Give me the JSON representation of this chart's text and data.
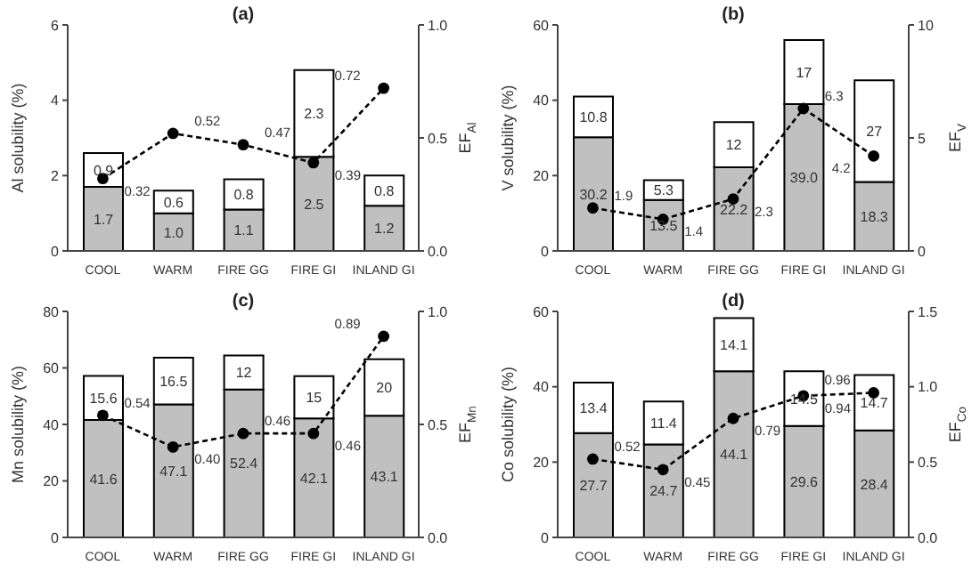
{
  "chart_data": [
    {
      "type": "bar",
      "title": "(a)",
      "ylabel": "Al solubility (%)",
      "y2label": "EF$_{Al}$",
      "categories": [
        "COOL",
        "WARM",
        "FIRE GG",
        "FIRE GI",
        "INLAND GI"
      ],
      "stacked": true,
      "series": [
        {
          "color": "#c0c0c0",
          "values": [
            1.7,
            1.0,
            1.1,
            2.5,
            1.2
          ],
          "value_labels": [
            "1.7",
            "1.0",
            "1.1",
            "2.5",
            "1.2"
          ]
        },
        {
          "color": "#ffffff",
          "values": [
            0.9,
            0.6,
            0.8,
            2.3,
            0.8
          ],
          "value_labels": [
            "0.9",
            "0.6",
            "0.8",
            "2.3",
            "0.8"
          ]
        },
        {
          "type": "line",
          "axis": "y2",
          "color": "#000000",
          "values": [
            0.32,
            0.52,
            0.47,
            0.39,
            0.72
          ],
          "value_labels": [
            "0.32",
            "0.52",
            "0.47",
            "0.39",
            "0.72"
          ]
        }
      ],
      "ylim": [
        0,
        6
      ],
      "yticks": [
        0,
        2,
        4,
        6
      ],
      "y2lim": [
        0,
        1
      ],
      "y2ticks": [
        {
          "value": 0,
          "label": "0.0"
        },
        {
          "value": 0.5,
          "label": "0.5"
        },
        {
          "value": 1,
          "label": "1.0"
        }
      ],
      "grid": false,
      "legend": false,
      "marker": "circle",
      "line_style": "dashed"
    },
    {
      "type": "bar",
      "title": "(b)",
      "ylabel": "V solubility (%)",
      "y2label": "EF$_{V}$",
      "categories": [
        "COOL",
        "WARM",
        "FIRE GG",
        "FIRE GI",
        "INLAND GI"
      ],
      "stacked": true,
      "series": [
        {
          "color": "#c0c0c0",
          "values": [
            30.2,
            13.5,
            22.2,
            39.0,
            18.3
          ],
          "value_labels": [
            "30.2",
            "13.5",
            "22.2",
            "39.0",
            "18.3"
          ]
        },
        {
          "color": "#ffffff",
          "values": [
            10.8,
            5.3,
            12,
            17,
            27
          ],
          "value_labels": [
            "10.8",
            "5.3",
            "12",
            "17",
            "27"
          ]
        },
        {
          "type": "line",
          "axis": "y2",
          "color": "#000000",
          "values": [
            1.9,
            1.4,
            2.3,
            6.3,
            4.2
          ],
          "value_labels": [
            "1.9",
            "1.4",
            "2.3",
            "6.3",
            "4.2"
          ]
        }
      ],
      "ylim": [
        0,
        60
      ],
      "yticks": [
        0,
        20,
        40,
        60
      ],
      "y2lim": [
        0,
        10
      ],
      "y2ticks": [
        0,
        5,
        10
      ],
      "grid": false,
      "legend": false,
      "marker": "circle",
      "line_style": "dashed"
    },
    {
      "type": "bar",
      "title": "(c)",
      "ylabel": "Mn solubility (%)",
      "y2label": "EF$_{Mn}$",
      "categories": [
        "COOL",
        "WARM",
        "FIRE GG",
        "FIRE GI",
        "INLAND GI"
      ],
      "stacked": true,
      "series": [
        {
          "color": "#c0c0c0",
          "values": [
            41.6,
            47.1,
            52.4,
            42.1,
            43.1
          ],
          "value_labels": [
            "41.6",
            "47.1",
            "52.4",
            "42.1",
            "43.1"
          ]
        },
        {
          "color": "#ffffff",
          "values": [
            15.6,
            16.5,
            12,
            15,
            20
          ],
          "value_labels": [
            "15.6",
            "16.5",
            "12",
            "15",
            "20"
          ]
        },
        {
          "type": "line",
          "axis": "y2",
          "color": "#000000",
          "values": [
            0.54,
            0.4,
            0.46,
            0.46,
            0.89
          ],
          "value_labels": [
            "0.54",
            "0.40",
            "0.46",
            "0.46",
            "0.89"
          ]
        }
      ],
      "ylim": [
        0,
        80
      ],
      "yticks": [
        0,
        20,
        40,
        60,
        80
      ],
      "y2lim": [
        0,
        1
      ],
      "y2ticks": [
        {
          "value": 0,
          "label": "0.0"
        },
        {
          "value": 0.5,
          "label": "0.5"
        },
        {
          "value": 1,
          "label": "1.0"
        }
      ],
      "grid": false,
      "legend": false,
      "marker": "circle",
      "line_style": "dashed"
    },
    {
      "type": "bar",
      "title": "(d)",
      "ylabel": "Co solubility (%)",
      "y2label": "EF$_{Co}$",
      "categories": [
        "COOL",
        "WARM",
        "FIRE GG",
        "FIRE GI",
        "INLAND GI"
      ],
      "stacked": true,
      "series": [
        {
          "color": "#c0c0c0",
          "values": [
            27.7,
            24.7,
            44.1,
            29.6,
            28.4
          ],
          "value_labels": [
            "27.7",
            "24.7",
            "44.1",
            "29.6",
            "28.4"
          ]
        },
        {
          "color": "#ffffff",
          "values": [
            13.4,
            11.4,
            14.1,
            14.5,
            14.7
          ],
          "value_labels": [
            "13.4",
            "11.4",
            "14.1",
            "14.5",
            "14.7"
          ]
        },
        {
          "type": "line",
          "axis": "y2",
          "color": "#000000",
          "values": [
            0.52,
            0.45,
            0.79,
            0.94,
            0.96
          ],
          "value_labels": [
            "0.52",
            "0.45",
            "0.79",
            "0.94",
            "0.96"
          ]
        }
      ],
      "ylim": [
        0,
        60
      ],
      "yticks": [
        0,
        20,
        40,
        60
      ],
      "y2lim": [
        0,
        1.5
      ],
      "y2ticks": [
        {
          "value": 0,
          "label": "0.0"
        },
        {
          "value": 0.5,
          "label": "0.5"
        },
        {
          "value": 1,
          "label": "1.0"
        },
        {
          "value": 1.5,
          "label": "1.5"
        }
      ],
      "grid": false,
      "legend": false,
      "marker": "circle",
      "line_style": "dashed"
    }
  ]
}
